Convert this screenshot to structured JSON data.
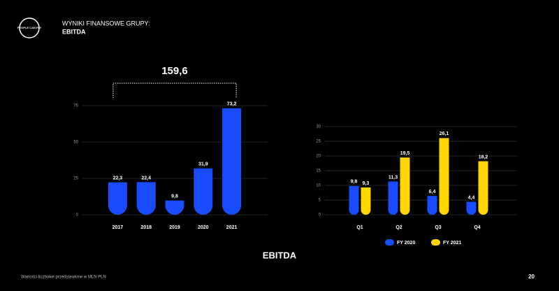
{
  "header": {
    "logo": "PEOPLE CAN FLY",
    "title": "WYNIKI FINANSOWE GRUPY:",
    "subtitle": "EBITDA"
  },
  "chart_data": [
    {
      "type": "bar",
      "categories": [
        "2017",
        "2018",
        "2019",
        "2020",
        "2021"
      ],
      "values": [
        22.3,
        22.4,
        9.8,
        31.9,
        73.2
      ],
      "value_labels": [
        "22,3",
        "22,4",
        "9,8",
        "31,9",
        "73,2"
      ],
      "color": "#1a4cff",
      "ylim": [
        0,
        75
      ],
      "yticks": [
        0,
        25,
        50,
        75
      ],
      "grid": true,
      "annotation": "159,6"
    },
    {
      "type": "grouped_bar",
      "categories": [
        "Q1",
        "Q2",
        "Q3",
        "Q4"
      ],
      "series": [
        {
          "name": "FY 2020",
          "color": "#1a4cff",
          "values": [
            9.8,
            11.3,
            6.4,
            4.4
          ],
          "value_labels": [
            "9,8",
            "11,3",
            "6,4",
            "4,4"
          ]
        },
        {
          "name": "FY 2021",
          "color": "#ffd600",
          "values": [
            9.3,
            19.5,
            26.1,
            18.2
          ],
          "value_labels": [
            "9,3",
            "19,5",
            "26,1",
            "18,2"
          ]
        }
      ],
      "ylim": [
        0,
        30
      ],
      "yticks": [
        0,
        5,
        10,
        15,
        20,
        25,
        30
      ],
      "grid": true,
      "legend": "bottom"
    }
  ],
  "footer": {
    "caption": "EBITDA",
    "note": "Wartości liczbowe przedstawione w MLN PLN",
    "page": "20"
  }
}
